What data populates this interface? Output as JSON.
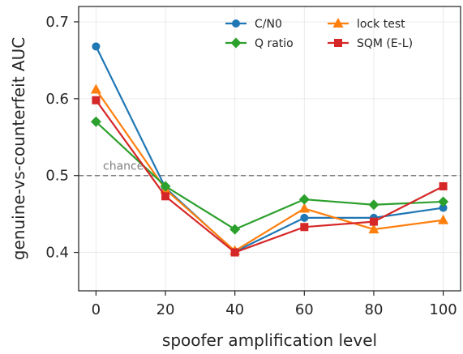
{
  "chart_data": {
    "type": "line",
    "xlabel": "spoofer amplification level",
    "ylabel": "genuine-vs-counterfeit AUC",
    "x": [
      0,
      20,
      40,
      60,
      80,
      100
    ],
    "xlim": [
      -5,
      105
    ],
    "ylim": [
      0.35,
      0.72
    ],
    "xticks": [
      0,
      20,
      40,
      60,
      80,
      100
    ],
    "yticks": [
      0.4,
      0.5,
      0.6,
      0.7
    ],
    "xtick_labels": [
      "0",
      "20",
      "40",
      "60",
      "80",
      "100"
    ],
    "ytick_labels": [
      "0.4",
      "0.5",
      "0.6",
      "0.7"
    ],
    "grid": true,
    "legend_position": "top-right",
    "reference_line": {
      "y": 0.5,
      "label": "chance",
      "color": "#7f7f7f"
    },
    "series": [
      {
        "name": "C/N0",
        "color": "#1f77b4",
        "marker": "circle",
        "values": [
          0.668,
          0.484,
          0.401,
          0.445,
          0.445,
          0.458
        ]
      },
      {
        "name": "lock test",
        "color": "#ff7f0e",
        "marker": "triangle",
        "values": [
          0.612,
          0.482,
          0.402,
          0.457,
          0.43,
          0.442
        ]
      },
      {
        "name": "Q ratio",
        "color": "#2ca02c",
        "marker": "diamond",
        "values": [
          0.57,
          0.486,
          0.43,
          0.469,
          0.462,
          0.466
        ]
      },
      {
        "name": "SQM (E-L)",
        "color": "#d62728",
        "marker": "square",
        "values": [
          0.598,
          0.473,
          0.4,
          0.433,
          0.44,
          0.486
        ]
      }
    ]
  }
}
